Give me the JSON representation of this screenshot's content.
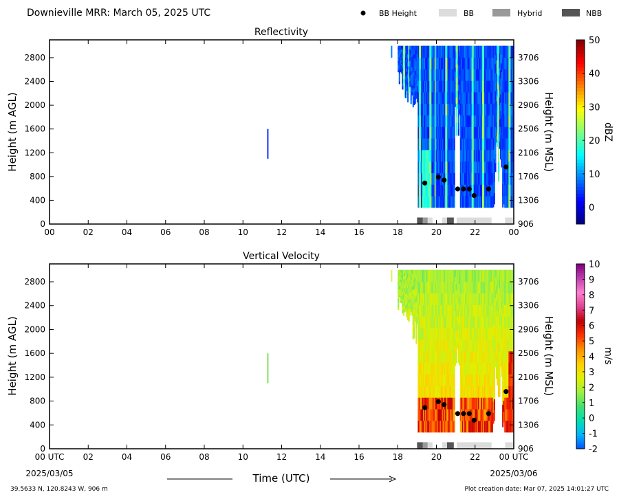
{
  "header": {
    "title": "Downieville MRR:  March 05, 2025 UTC"
  },
  "legend": {
    "items": [
      {
        "label": "BB Height",
        "kind": "dot",
        "color": "#000000"
      },
      {
        "label": "BB",
        "kind": "box",
        "color": "#dcdcdc"
      },
      {
        "label": "Hybrid",
        "kind": "box",
        "color": "#999999"
      },
      {
        "label": "NBB",
        "kind": "box",
        "color": "#555555"
      }
    ]
  },
  "footer": {
    "location": "39.5633 N, 120.8243 W, 906 m",
    "creation": "Plot creation date: Mar 07, 2025 14:01:27 UTC",
    "time_label": "Time (UTC)",
    "date_start": "2025/03/05",
    "date_end": "2025/03/06"
  },
  "chart_data": [
    {
      "type": "heatmap",
      "title": "Reflectivity",
      "ylabel": "Height (m AGL)",
      "y2label": "Height (m MSL)",
      "colorbar_label": "dBZ",
      "xlim": [
        0,
        24
      ],
      "ylim": [
        0,
        3100
      ],
      "x_ticks": [
        "00",
        "02",
        "04",
        "06",
        "08",
        "10",
        "12",
        "14",
        "16",
        "18",
        "20",
        "22",
        "00"
      ],
      "y_ticks": [
        0,
        400,
        800,
        1200,
        1600,
        2000,
        2400,
        2800
      ],
      "y2_ticks": [
        906,
        1306,
        1706,
        2106,
        2506,
        2906,
        3306,
        3706
      ],
      "colorbar_ticks": [
        0,
        10,
        20,
        30,
        40,
        50
      ],
      "colorbar_range": [
        -5,
        50
      ],
      "colormap": [
        "#00007f",
        "#0000ff",
        "#007fff",
        "#00ffff",
        "#7fff7f",
        "#ffff00",
        "#ff7f00",
        "#ff0000",
        "#7f0000"
      ],
      "precip_onset_utc": 19.0,
      "echo_top_m": 3000,
      "bb_heights": [
        {
          "time": 19.4,
          "height": 690
        },
        {
          "time": 20.1,
          "height": 790
        },
        {
          "time": 20.4,
          "height": 740
        },
        {
          "time": 21.1,
          "height": 590
        },
        {
          "time": 21.4,
          "height": 590
        },
        {
          "time": 21.7,
          "height": 590
        },
        {
          "time": 21.95,
          "height": 480
        },
        {
          "time": 22.7,
          "height": 590
        },
        {
          "time": 23.6,
          "height": 960
        }
      ],
      "bb_type_strip": [
        {
          "start": 19.0,
          "end": 19.3,
          "type": "NBB"
        },
        {
          "start": 19.3,
          "end": 19.55,
          "type": "Hybrid"
        },
        {
          "start": 19.55,
          "end": 19.8,
          "type": "BB"
        },
        {
          "start": 20.3,
          "end": 20.55,
          "type": "BB"
        },
        {
          "start": 20.55,
          "end": 20.9,
          "type": "NBB"
        },
        {
          "start": 21.05,
          "end": 22.85,
          "type": "BB"
        },
        {
          "start": 23.55,
          "end": 24.0,
          "type": "BB"
        }
      ]
    },
    {
      "type": "heatmap",
      "title": "Vertical Velocity",
      "ylabel": "Height (m AGL)",
      "y2label": "Height (m MSL)",
      "colorbar_label": "m/s",
      "xlim": [
        0,
        24
      ],
      "ylim": [
        0,
        3100
      ],
      "x_ticks": [
        "00 UTC",
        "02",
        "04",
        "06",
        "08",
        "10",
        "12",
        "14",
        "16",
        "18",
        "20",
        "22",
        "00 UTC"
      ],
      "y_ticks": [
        0,
        400,
        800,
        1200,
        1600,
        2000,
        2400,
        2800
      ],
      "y2_ticks": [
        906,
        1306,
        1706,
        2106,
        2506,
        2906,
        3306,
        3706
      ],
      "colorbar_ticks": [
        -2,
        -1,
        0,
        1,
        2,
        3,
        4,
        5,
        6,
        7,
        8,
        9,
        10
      ],
      "colorbar_range": [
        -2,
        10
      ],
      "colormap": [
        "#0050ff",
        "#00b4ff",
        "#00e0b0",
        "#40e070",
        "#a0f040",
        "#e0f000",
        "#ffd000",
        "#ff9000",
        "#ff3000",
        "#c00000",
        "#e04090",
        "#ff80d0",
        "#c040b0",
        "#800080"
      ],
      "precip_onset_utc": 19.0,
      "echo_top_m": 3000,
      "bb_heights": [
        {
          "time": 19.4,
          "height": 690
        },
        {
          "time": 20.1,
          "height": 790
        },
        {
          "time": 20.4,
          "height": 740
        },
        {
          "time": 21.1,
          "height": 590
        },
        {
          "time": 21.4,
          "height": 590
        },
        {
          "time": 21.7,
          "height": 590
        },
        {
          "time": 21.95,
          "height": 480
        },
        {
          "time": 22.7,
          "height": 590
        },
        {
          "time": 23.6,
          "height": 960
        }
      ],
      "bb_type_strip": [
        {
          "start": 19.0,
          "end": 19.3,
          "type": "NBB"
        },
        {
          "start": 19.3,
          "end": 19.55,
          "type": "Hybrid"
        },
        {
          "start": 19.55,
          "end": 19.8,
          "type": "BB"
        },
        {
          "start": 20.3,
          "end": 20.55,
          "type": "BB"
        },
        {
          "start": 20.55,
          "end": 20.9,
          "type": "NBB"
        },
        {
          "start": 21.05,
          "end": 22.85,
          "type": "BB"
        },
        {
          "start": 23.55,
          "end": 24.0,
          "type": "BB"
        }
      ]
    }
  ]
}
